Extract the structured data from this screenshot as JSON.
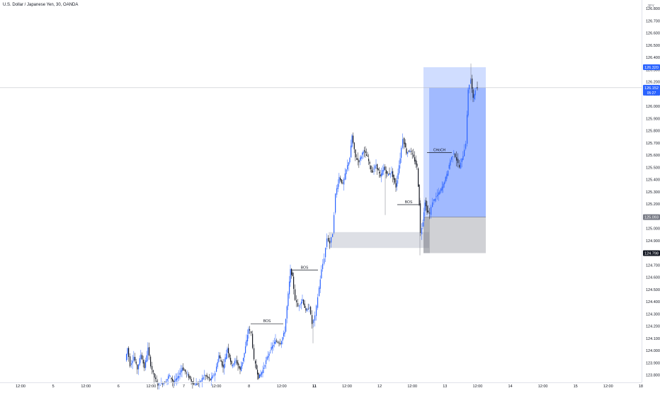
{
  "header": {
    "symbol_title": "U.S. Dollar / Japanese Yen, 30, OANDA"
  },
  "price_axis": {
    "currency": "JPY",
    "ticks": [
      "126.800",
      "126.700",
      "126.600",
      "126.500",
      "126.400",
      "126.300",
      "126.200",
      "126.100",
      "126.000",
      "125.900",
      "125.800",
      "125.700",
      "125.600",
      "125.500",
      "125.400",
      "125.300",
      "125.200",
      "125.100",
      "125.000",
      "124.900",
      "124.800",
      "124.700",
      "124.600",
      "124.500",
      "124.400",
      "124.300",
      "124.200",
      "124.100",
      "124.000",
      "123.900",
      "123.800"
    ],
    "tick_values": [
      126.8,
      126.7,
      126.6,
      126.5,
      126.4,
      126.3,
      126.2,
      126.1,
      126.0,
      125.9,
      125.8,
      125.7,
      125.6,
      125.5,
      125.4,
      125.3,
      125.2,
      125.1,
      125.0,
      124.9,
      124.8,
      124.7,
      124.6,
      124.5,
      124.4,
      124.3,
      124.2,
      124.1,
      124.0,
      123.9,
      123.8
    ]
  },
  "price_labels": [
    {
      "id": "target",
      "text": "126.320",
      "value": 126.32,
      "bg": "#2962ff",
      "fg": "#ffffff"
    },
    {
      "id": "last",
      "text": "126.152",
      "value": 126.152,
      "bg": "#2962ff",
      "fg": "#ffffff",
      "sub": "05:27"
    },
    {
      "id": "entry",
      "text": "125.093",
      "value": 125.093,
      "bg": "#787b86",
      "fg": "#ffffff"
    },
    {
      "id": "stop",
      "text": "124.798",
      "value": 124.798,
      "bg": "#131722",
      "fg": "#ffffff"
    }
  ],
  "time_axis": {
    "labels": [
      "12:00",
      "5",
      "12:00",
      "6",
      "12:00",
      "7",
      "12:00",
      "8",
      "12:00",
      "11",
      "12:00",
      "12",
      "12:00",
      "13",
      "12:00",
      "14",
      "12:00",
      "15",
      "12:00",
      "18"
    ],
    "bold": [
      "11"
    ]
  },
  "annotations": [
    {
      "text": "BOS",
      "x1": 354,
      "x2": 400,
      "price": 124.22
    },
    {
      "text": "BOS",
      "x1": 411,
      "x2": 449,
      "price": 124.66
    },
    {
      "text": "BOS",
      "x1": 561,
      "x2": 593,
      "price": 125.195
    },
    {
      "text": "CHoCH",
      "x1": 603,
      "x2": 638,
      "price": 125.62
    }
  ],
  "zones": {
    "demand_zone": {
      "x1": 464,
      "x2": 606,
      "top": 124.97,
      "bottom": 124.84,
      "color": "#d1d4dc"
    },
    "position": {
      "x1": 598,
      "x2": 686,
      "target": 126.32,
      "entry": 125.093,
      "stop": 124.798,
      "profit_color": "#2962ff",
      "loss_color": "#787b86"
    }
  },
  "chart_data": {
    "type": "candlestick",
    "title": "U.S. Dollar / Japanese Yen, 30, OANDA",
    "xlabel": "",
    "ylabel": "",
    "ylim": [
      123.74,
      126.87
    ],
    "up_color": "#2962ff",
    "down_color": "#131722",
    "last_price": 126.152,
    "key_closes": [
      {
        "time": "Jan 7",
        "close": 123.9
      },
      {
        "time": "Jan 8",
        "close": 124.22
      },
      {
        "time": "Jan 8 12:00",
        "close": 124.18
      },
      {
        "time": "Jan 9",
        "close": 124.66
      },
      {
        "time": "Jan 11",
        "close": 124.92
      },
      {
        "time": "Jan 11 12:00",
        "close": 125.65
      },
      {
        "time": "Jan 12",
        "close": 125.42
      },
      {
        "time": "Jan 12 12:00",
        "close": 125.3
      },
      {
        "time": "Jan 13",
        "close": 125.15
      },
      {
        "time": "Jan 13 12:00",
        "close": 126.152
      }
    ]
  }
}
